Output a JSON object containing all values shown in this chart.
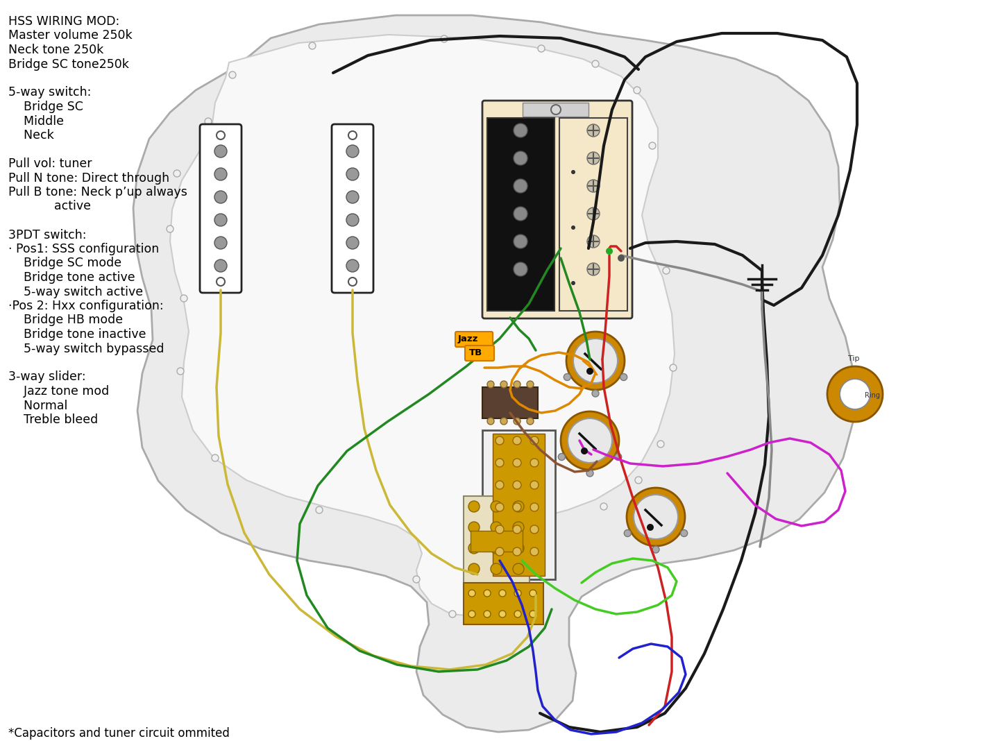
{
  "bg_color": "#ffffff",
  "annotation_lines": [
    "HSS WIRING MOD:",
    "Master volume 250k",
    "Neck tone 250k",
    "Bridge SC tone250k",
    "",
    "5-way switch:",
    "    Bridge SC",
    "    Middle",
    "    Neck",
    "",
    "Pull vol: tuner",
    "Pull N tone: Direct through",
    "Pull B tone: Neck p’up always",
    "            active",
    "",
    "3PDT switch:",
    "· Pos1: SSS configuration",
    "    Bridge SC mode",
    "    Bridge tone active",
    "    5-way switch active",
    "·Pos 2: Hxx configuration:",
    "    Bridge HB mode",
    "    Bridge tone inactive",
    "    5-way switch bypassed",
    "",
    "3-way slider:",
    "    Jazz tone mod",
    "    Normal",
    "    Treble bleed"
  ],
  "footer_text": "*Capacitors and tuner circuit ommited"
}
